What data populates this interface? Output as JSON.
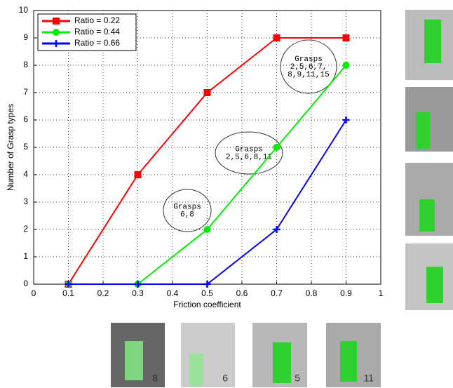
{
  "chart_data": {
    "type": "line",
    "x_label": "Friction coefficient",
    "y_label": "Number of Grasp types",
    "x": [
      0.1,
      0.3,
      0.5,
      0.7,
      0.9
    ],
    "series": [
      {
        "name": "Ratio = 0.22",
        "color": "#ff0000",
        "marker": "square",
        "values": [
          0,
          4,
          7,
          9,
          9
        ]
      },
      {
        "name": "Ratio = 0.44",
        "color": "#00ee00",
        "marker": "circle",
        "values": [
          0,
          0,
          2,
          5,
          8
        ]
      },
      {
        "name": "Ratio = 0.66",
        "color": "#0000ff",
        "marker": "plus",
        "values": [
          0,
          0,
          0,
          2,
          6
        ]
      }
    ],
    "xlim": [
      0,
      1
    ],
    "xticks": [
      0,
      0.1,
      0.2,
      0.3,
      0.4,
      0.5,
      0.6,
      0.7,
      0.8,
      0.9,
      1
    ],
    "ylim": [
      0,
      10
    ],
    "yticks": [
      0,
      1,
      2,
      3,
      4,
      5,
      6,
      7,
      8,
      9,
      10
    ],
    "grid": true,
    "legend": "upper left",
    "annotations": [
      {
        "lines": [
          "Grasps",
          "6,8"
        ]
      },
      {
        "lines": [
          "Grasps",
          "2,5,6,8,11"
        ]
      },
      {
        "lines": [
          "Grasps",
          "2,5,6,7,",
          "8,9,11,15"
        ]
      }
    ],
    "thumbnails": [
      "8",
      "6",
      "5",
      "11"
    ]
  }
}
